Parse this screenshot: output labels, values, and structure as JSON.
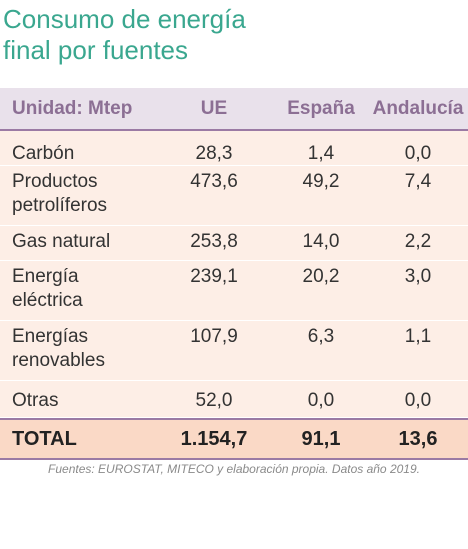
{
  "title": {
    "line1": "Consumo de energía",
    "line2": "final por fuentes"
  },
  "table": {
    "headers": [
      "Unidad: Mtep",
      "UE",
      "España",
      "Andalucía"
    ],
    "rows": [
      {
        "label": [
          "Carbón"
        ],
        "ue": "28,3",
        "es": "1,4",
        "an": "0,0"
      },
      {
        "label": [
          "Productos",
          "petrolíferos"
        ],
        "ue": "473,6",
        "es": "49,2",
        "an": "7,4"
      },
      {
        "label": [
          "Gas natural"
        ],
        "ue": "253,8",
        "es": "14,0",
        "an": "2,2"
      },
      {
        "label": [
          "Energía",
          "eléctrica"
        ],
        "ue": "239,1",
        "es": "20,2",
        "an": "3,0"
      },
      {
        "label": [
          "Energías",
          "renovables"
        ],
        "ue": "107,9",
        "es": "6,3",
        "an": "1,1"
      },
      {
        "label": [
          "Otras"
        ],
        "ue": "52,0",
        "es": "0,0",
        "an": "0,0"
      }
    ],
    "total": {
      "label": "TOTAL",
      "ue": "1.154,7",
      "es": "91,1",
      "an": "13,6"
    }
  },
  "source": "Fuentes: EUROSTAT, MITECO y elaboración propia. Datos año 2019.",
  "colors": {
    "title": "#3aa78f",
    "header_bg": "#e9e1eb",
    "header_text": "#8c6f94",
    "row_bg": "#fdeee6",
    "total_bg": "#fad9c6",
    "rule": "#9b7aa4"
  }
}
